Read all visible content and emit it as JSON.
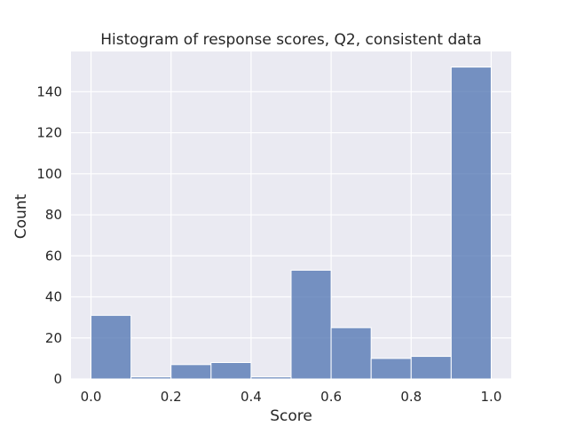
{
  "chart_data": {
    "type": "bar",
    "title": "Histogram of response scores, Q2, consistent data",
    "xlabel": "Score",
    "ylabel": "Count",
    "bin_edges": [
      0.0,
      0.1,
      0.2,
      0.3,
      0.4,
      0.5,
      0.6,
      0.7,
      0.8,
      0.9,
      1.0
    ],
    "values": [
      31,
      1,
      7,
      8,
      1,
      53,
      25,
      10,
      11,
      152
    ],
    "xlim": [
      -0.05,
      1.05
    ],
    "ylim": [
      0,
      159.6
    ],
    "xticks": [
      0.0,
      0.2,
      0.4,
      0.6,
      0.8,
      1.0
    ],
    "xtick_labels": [
      "0.0",
      "0.2",
      "0.4",
      "0.6",
      "0.8",
      "1.0"
    ],
    "yticks": [
      0,
      20,
      40,
      60,
      80,
      100,
      120,
      140
    ],
    "ytick_labels": [
      "0",
      "20",
      "40",
      "60",
      "80",
      "100",
      "120",
      "140"
    ],
    "grid": true,
    "colors": {
      "background": "#eaeaf2",
      "bar_fill": "#4c72b0",
      "bar_edge": "#ffffff",
      "grid": "#ffffff",
      "text": "#262626"
    }
  }
}
